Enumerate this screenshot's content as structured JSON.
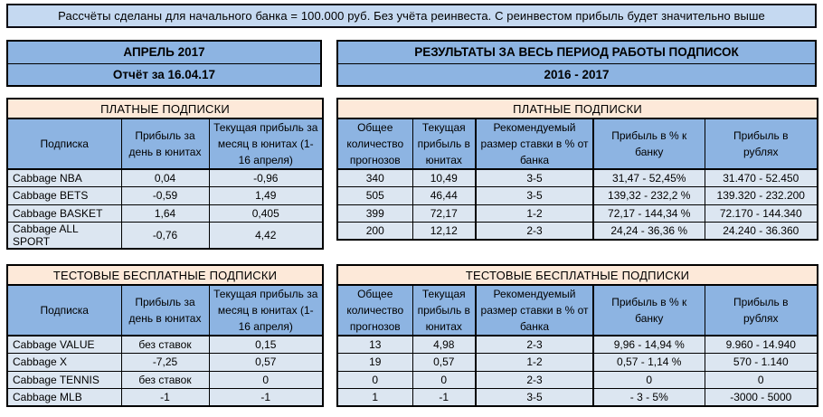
{
  "banner": {
    "text": "Рассчёты сделаны для начального банка = 100.000 руб. Без учёта реинвеста. С реинвестом прибыль будет значительно выше"
  },
  "left_header": {
    "title": "АПРЕЛЬ 2017",
    "subtitle": "Отчёт за 16.04.17"
  },
  "right_header": {
    "title": "РЕЗУЛЬТАТЫ ЗА ВЕСЬ ПЕРИОД РАБОТЫ ПОДПИСОК",
    "subtitle": "2016 - 2017"
  },
  "daily_tables": {
    "columns": [
      "Подписка",
      "Прибыль за день в юнитах",
      "Текущая прибыль за месяц в юнитах (1-16 апреля)"
    ],
    "paid": {
      "title": "ПЛАТНЫЕ ПОДПИСКИ",
      "rows": [
        [
          "Cabbage NBA",
          "0,04",
          "-0,96"
        ],
        [
          "Cabbage BETS",
          "-0,59",
          "1,49"
        ],
        [
          "Cabbage BASKET",
          "1,64",
          "0,405"
        ],
        [
          "Cabbage ALL SPORT",
          "-0,76",
          "4,42"
        ]
      ]
    },
    "test": {
      "title": "ТЕСТОВЫЕ БЕСПЛАТНЫЕ ПОДПИСКИ",
      "rows": [
        [
          "Cabbage VALUE",
          "без ставок",
          "0,15"
        ],
        [
          "Cabbage X",
          "-7,25",
          "0,57"
        ],
        [
          "Cabbage TENNIS",
          "без ставок",
          "0"
        ],
        [
          "Cabbage MLB",
          "-1",
          "-1"
        ]
      ]
    }
  },
  "period_tables": {
    "columns": [
      "Общее количество прогнозов",
      "Текущая прибыль в юнитах",
      "Рекомендуемый размер ставки в % от банка",
      "Прибыль в % к банку",
      "Прибыль в рублях"
    ],
    "paid": {
      "title": "ПЛАТНЫЕ ПОДПИСКИ",
      "rows": [
        [
          "340",
          "10,49",
          "3-5",
          "31,47 - 52,45%",
          "31.470 - 52.450"
        ],
        [
          "505",
          "46,44",
          "3-5",
          "139,32 - 232,2 %",
          "139.320 - 232.200"
        ],
        [
          "399",
          "72,17",
          "1-2",
          "72,17 - 144,34 %",
          "72.170 - 144.340"
        ],
        [
          "200",
          "12,12",
          "2-3",
          "24,24 - 36,36 %",
          "24.240 - 36.360"
        ]
      ]
    },
    "test": {
      "title": "ТЕСТОВЫЕ БЕСПЛАТНЫЕ ПОДПИСКИ",
      "rows": [
        [
          "13",
          "4,98",
          "2-3",
          "9,96 - 14,94 %",
          "9.960 - 14.940"
        ],
        [
          "19",
          "0,57",
          "1-2",
          "0,57 - 1,14 %",
          "570 - 1.140"
        ],
        [
          "0",
          "0",
          "2-3",
          "0",
          "0"
        ],
        [
          "1",
          "-1",
          "3-5",
          "- 3 - 5%",
          "-3000 - 5000"
        ]
      ]
    }
  },
  "colors": {
    "banner_bg": "#C5D9F1",
    "header_blue": "#8DB4E2",
    "cell_blue": "#DCE6F1",
    "peach": "#FDE9D9",
    "border": "#000000"
  }
}
